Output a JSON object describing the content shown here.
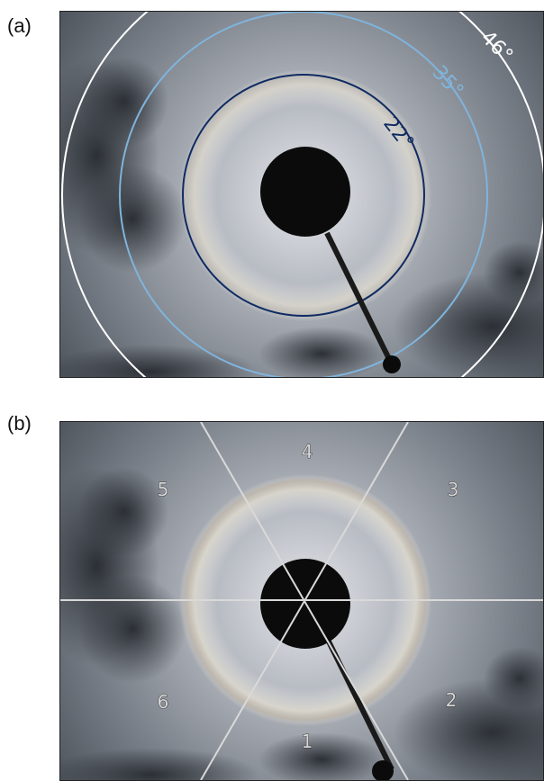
{
  "panels": {
    "a": {
      "label": "(a)",
      "rings": [
        {
          "angle": "22°",
          "color": "#0f2b63"
        },
        {
          "angle": "35°",
          "color": "#7fb4dc"
        },
        {
          "angle": "46°",
          "color": "#ffffff"
        }
      ]
    },
    "b": {
      "label": "(b)",
      "sectors": [
        "1",
        "2",
        "3",
        "4",
        "5",
        "6"
      ],
      "divider_color": "#d9d9d9"
    }
  },
  "colors": {
    "sky_center": "#cfd3d8",
    "sky_edge": "#3e444c",
    "occulter": "#0b0b0b"
  }
}
